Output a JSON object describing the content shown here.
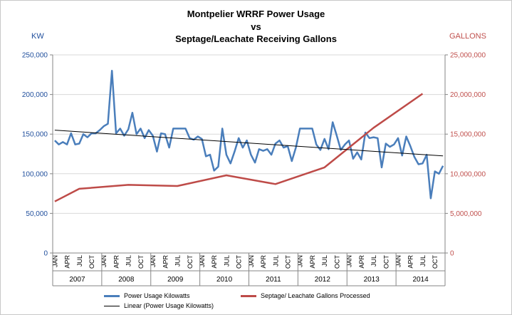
{
  "chart": {
    "title_line1": "Montpelier WRRF Power Usage",
    "title_line2": "vs",
    "title_line3": "Septage/Leachate Receiving Gallons",
    "left_unit": "KW",
    "right_unit": "GALLONS"
  },
  "colors": {
    "power": "#4a7ebb",
    "septage": "#be4b48",
    "trend": "#000000",
    "left_axis_text": "#1f4e9c",
    "right_axis_text": "#c0504d"
  },
  "legend": {
    "power": "Power Usage Kilowatts",
    "septage": "Septage/ Leachate Gallons Processed",
    "trend": "Linear (Power Usage Kilowatts)"
  },
  "chart_data": {
    "type": "line",
    "left_axis": {
      "min": 0,
      "max": 250000,
      "ticks": [
        "0",
        "50,000",
        "100,000",
        "150,000",
        "200,000",
        "250,000"
      ]
    },
    "right_axis": {
      "min": 0,
      "max": 25000000,
      "ticks": [
        "0",
        "5,000,000",
        "10,000,000",
        "15,000,000",
        "20,000,000",
        "25,000,000"
      ]
    },
    "month_labels": [
      "JAN",
      "APR",
      "JUL",
      "OCT"
    ],
    "years": [
      "2007",
      "2008",
      "2009",
      "2010",
      "2011",
      "2012",
      "2013",
      "2014"
    ],
    "months_in_last_year": 12,
    "series": [
      {
        "name": "Power Usage Kilowatts",
        "axis": "left",
        "monthly_values": [
          142000,
          137000,
          140000,
          137000,
          151000,
          137000,
          138000,
          150000,
          146000,
          151000,
          151000,
          155000,
          160000,
          163000,
          230000,
          151000,
          157000,
          148000,
          156000,
          177000,
          150000,
          157000,
          145000,
          155000,
          148000,
          128000,
          151000,
          150000,
          133000,
          157000,
          157000,
          157000,
          157000,
          145000,
          143000,
          147000,
          144000,
          122000,
          124000,
          104000,
          109000,
          157000,
          124000,
          113000,
          128000,
          145000,
          133000,
          142000,
          124000,
          114000,
          131000,
          129000,
          131000,
          124000,
          138000,
          142000,
          133000,
          135000,
          116000,
          133000,
          157000,
          157000,
          157000,
          157000,
          137000,
          130000,
          144000,
          131000,
          165000,
          148000,
          130000,
          137000,
          142000,
          119000,
          127000,
          118000,
          152000,
          145000,
          146000,
          145000,
          108000,
          138000,
          134000,
          137000,
          145000,
          123000,
          147000,
          135000,
          121000,
          112000,
          113000,
          124000,
          69000,
          103000,
          100000,
          110000
        ]
      },
      {
        "name": "Septage/ Leachate Gallons Processed",
        "axis": "right",
        "points": [
          [
            0,
            6500000
          ],
          [
            6,
            8100000
          ],
          [
            18,
            8600000
          ],
          [
            30,
            8450000
          ],
          [
            42,
            9800000
          ],
          [
            54,
            8700000
          ],
          [
            66,
            10800000
          ],
          [
            78,
            15800000
          ],
          [
            90,
            20100000
          ]
        ]
      },
      {
        "name": "Linear (Power Usage Kilowatts)",
        "axis": "left",
        "trend": [
          155000,
          122500
        ]
      }
    ]
  }
}
